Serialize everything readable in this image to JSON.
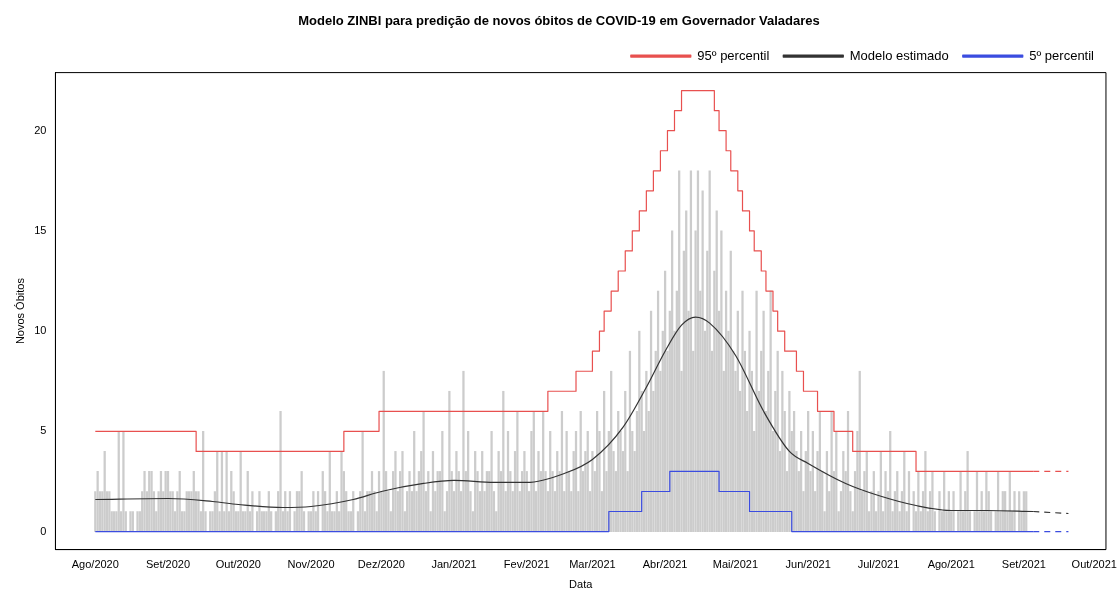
{
  "chart_data": {
    "type": "bar",
    "title": "Modelo ZINBI para predição de novos óbitos de COVID-19 em Governador Valadares",
    "xlabel": "Data",
    "ylabel": "Novos Óbitos",
    "xlim": [
      "2020-07-15",
      "2021-10-06"
    ],
    "ylim": [
      -0.9,
      22.9
    ],
    "xticks": [
      {
        "value": "2020-08-01",
        "label": "Ago/2020"
      },
      {
        "value": "2020-09-01",
        "label": "Set/2020"
      },
      {
        "value": "2020-10-01",
        "label": "Out/2020"
      },
      {
        "value": "2020-11-01",
        "label": "Nov/2020"
      },
      {
        "value": "2020-12-01",
        "label": "Dez/2020"
      },
      {
        "value": "2021-01-01",
        "label": "Jan/2021"
      },
      {
        "value": "2021-02-01",
        "label": "Fev/2021"
      },
      {
        "value": "2021-03-01",
        "label": "Mar/2021"
      },
      {
        "value": "2021-04-01",
        "label": "Abr/2021"
      },
      {
        "value": "2021-05-01",
        "label": "Mai/2021"
      },
      {
        "value": "2021-06-01",
        "label": "Jun/2021"
      },
      {
        "value": "2021-07-01",
        "label": "Jul/2021"
      },
      {
        "value": "2021-08-01",
        "label": "Ago/2021"
      },
      {
        "value": "2021-09-01",
        "label": "Set/2021"
      },
      {
        "value": "2021-10-01",
        "label": "Out/2021"
      }
    ],
    "yticks": [
      0,
      5,
      10,
      15,
      20
    ],
    "grid": false,
    "legend": "top right",
    "marker": "none",
    "series": [
      {
        "color": "#cccccc",
        "x": [
          "2020-08-01",
          "2020-08-02",
          "2020-08-03",
          "2020-08-04",
          "2020-08-05",
          "2020-08-06",
          "2020-08-07",
          "2020-08-08",
          "2020-08-09",
          "2020-08-10",
          "2020-08-11",
          "2020-08-12",
          "2020-08-13",
          "2020-08-14",
          "2020-08-15",
          "2020-08-16",
          "2020-08-17",
          "2020-08-18",
          "2020-08-19",
          "2020-08-20",
          "2020-08-21",
          "2020-08-22",
          "2020-08-23",
          "2020-08-24",
          "2020-08-25",
          "2020-08-26",
          "2020-08-27",
          "2020-08-28",
          "2020-08-29",
          "2020-08-30",
          "2020-08-31",
          "2020-09-01",
          "2020-09-02",
          "2020-09-03",
          "2020-09-04",
          "2020-09-05",
          "2020-09-06",
          "2020-09-07",
          "2020-09-08",
          "2020-09-09",
          "2020-09-10",
          "2020-09-11",
          "2020-09-12",
          "2020-09-13",
          "2020-09-14",
          "2020-09-15",
          "2020-09-16",
          "2020-09-17",
          "2020-09-18",
          "2020-09-19",
          "2020-09-20",
          "2020-09-21",
          "2020-09-22",
          "2020-09-23",
          "2020-09-24",
          "2020-09-25",
          "2020-09-26",
          "2020-09-27",
          "2020-09-28",
          "2020-09-29",
          "2020-09-30",
          "2020-10-01",
          "2020-10-02",
          "2020-10-03",
          "2020-10-04",
          "2020-10-05",
          "2020-10-06",
          "2020-10-07",
          "2020-10-08",
          "2020-10-09",
          "2020-10-10",
          "2020-10-11",
          "2020-10-12",
          "2020-10-13",
          "2020-10-14",
          "2020-10-15",
          "2020-10-16",
          "2020-10-17",
          "2020-10-18",
          "2020-10-19",
          "2020-10-20",
          "2020-10-21",
          "2020-10-22",
          "2020-10-23",
          "2020-10-24",
          "2020-10-25",
          "2020-10-26",
          "2020-10-27",
          "2020-10-28",
          "2020-10-29",
          "2020-10-30",
          "2020-10-31",
          "2020-11-01",
          "2020-11-02",
          "2020-11-03",
          "2020-11-04",
          "2020-11-05",
          "2020-11-06",
          "2020-11-07",
          "2020-11-08",
          "2020-11-09",
          "2020-11-10",
          "2020-11-11",
          "2020-11-12",
          "2020-11-13",
          "2020-11-14",
          "2020-11-15",
          "2020-11-16",
          "2020-11-17",
          "2020-11-18",
          "2020-11-19",
          "2020-11-20",
          "2020-11-21",
          "2020-11-22",
          "2020-11-23",
          "2020-11-24",
          "2020-11-25",
          "2020-11-26",
          "2020-11-27",
          "2020-11-28",
          "2020-11-29",
          "2020-11-30",
          "2020-12-01",
          "2020-12-02",
          "2020-12-03",
          "2020-12-04",
          "2020-12-05",
          "2020-12-06",
          "2020-12-07",
          "2020-12-08",
          "2020-12-09",
          "2020-12-10",
          "2020-12-11",
          "2020-12-12",
          "2020-12-13",
          "2020-12-14",
          "2020-12-15",
          "2020-12-16",
          "2020-12-17",
          "2020-12-18",
          "2020-12-19",
          "2020-12-20",
          "2020-12-21",
          "2020-12-22",
          "2020-12-23",
          "2020-12-24",
          "2020-12-25",
          "2020-12-26",
          "2020-12-27",
          "2020-12-28",
          "2020-12-29",
          "2020-12-30",
          "2020-12-31",
          "2021-01-01",
          "2021-01-02",
          "2021-01-03",
          "2021-01-04",
          "2021-01-05",
          "2021-01-06",
          "2021-01-07",
          "2021-01-08",
          "2021-01-09",
          "2021-01-10",
          "2021-01-11",
          "2021-01-12",
          "2021-01-13",
          "2021-01-14",
          "2021-01-15",
          "2021-01-16",
          "2021-01-17",
          "2021-01-18",
          "2021-01-19",
          "2021-01-20",
          "2021-01-21",
          "2021-01-22",
          "2021-01-23",
          "2021-01-24",
          "2021-01-25",
          "2021-01-26",
          "2021-01-27",
          "2021-01-28",
          "2021-01-29",
          "2021-01-30",
          "2021-01-31",
          "2021-02-01",
          "2021-02-02",
          "2021-02-03",
          "2021-02-04",
          "2021-02-05",
          "2021-02-06",
          "2021-02-07",
          "2021-02-08",
          "2021-02-09",
          "2021-02-10",
          "2021-02-11",
          "2021-02-12",
          "2021-02-13",
          "2021-02-14",
          "2021-02-15",
          "2021-02-16",
          "2021-02-17",
          "2021-02-18",
          "2021-02-19",
          "2021-02-20",
          "2021-02-21",
          "2021-02-22",
          "2021-02-23",
          "2021-02-24",
          "2021-02-25",
          "2021-02-26",
          "2021-02-27",
          "2021-02-28",
          "2021-03-01",
          "2021-03-02",
          "2021-03-03",
          "2021-03-04",
          "2021-03-05",
          "2021-03-06",
          "2021-03-07",
          "2021-03-08",
          "2021-03-09",
          "2021-03-10",
          "2021-03-11",
          "2021-03-12",
          "2021-03-13",
          "2021-03-14",
          "2021-03-15",
          "2021-03-16",
          "2021-03-17",
          "2021-03-18",
          "2021-03-19",
          "2021-03-20",
          "2021-03-21",
          "2021-03-22",
          "2021-03-23",
          "2021-03-24",
          "2021-03-25",
          "2021-03-26",
          "2021-03-27",
          "2021-03-28",
          "2021-03-29",
          "2021-03-30",
          "2021-03-31",
          "2021-04-01",
          "2021-04-02",
          "2021-04-03",
          "2021-04-04",
          "2021-04-05",
          "2021-04-06",
          "2021-04-07",
          "2021-04-08",
          "2021-04-09",
          "2021-04-10",
          "2021-04-11",
          "2021-04-12",
          "2021-04-13",
          "2021-04-14",
          "2021-04-15",
          "2021-04-16",
          "2021-04-17",
          "2021-04-18",
          "2021-04-19",
          "2021-04-20",
          "2021-04-21",
          "2021-04-22",
          "2021-04-23",
          "2021-04-24",
          "2021-04-25",
          "2021-04-26",
          "2021-04-27",
          "2021-04-28",
          "2021-04-29",
          "2021-04-30",
          "2021-05-01",
          "2021-05-02",
          "2021-05-03",
          "2021-05-04",
          "2021-05-05",
          "2021-05-06",
          "2021-05-07",
          "2021-05-08",
          "2021-05-09",
          "2021-05-10",
          "2021-05-11",
          "2021-05-12",
          "2021-05-13",
          "2021-05-14",
          "2021-05-15",
          "2021-05-16",
          "2021-05-17",
          "2021-05-18",
          "2021-05-19",
          "2021-05-20",
          "2021-05-21",
          "2021-05-22",
          "2021-05-23",
          "2021-05-24",
          "2021-05-25",
          "2021-05-26",
          "2021-05-27",
          "2021-05-28",
          "2021-05-29",
          "2021-05-30",
          "2021-05-31",
          "2021-06-01",
          "2021-06-02",
          "2021-06-03",
          "2021-06-04",
          "2021-06-05",
          "2021-06-06",
          "2021-06-07",
          "2021-06-08",
          "2021-06-09",
          "2021-06-10",
          "2021-06-11",
          "2021-06-12",
          "2021-06-13",
          "2021-06-14",
          "2021-06-15",
          "2021-06-16",
          "2021-06-17",
          "2021-06-18",
          "2021-06-19",
          "2021-06-20",
          "2021-06-21",
          "2021-06-22",
          "2021-06-23",
          "2021-06-24",
          "2021-06-25",
          "2021-06-26",
          "2021-06-27",
          "2021-06-28",
          "2021-06-29",
          "2021-06-30",
          "2021-07-01",
          "2021-07-02",
          "2021-07-03",
          "2021-07-04",
          "2021-07-05",
          "2021-07-06",
          "2021-07-07",
          "2021-07-08",
          "2021-07-09",
          "2021-07-10",
          "2021-07-11",
          "2021-07-12",
          "2021-07-13",
          "2021-07-14",
          "2021-07-15",
          "2021-07-16",
          "2021-07-17",
          "2021-07-18",
          "2021-07-19",
          "2021-07-20",
          "2021-07-21",
          "2021-07-22",
          "2021-07-23",
          "2021-07-24",
          "2021-07-25",
          "2021-07-26",
          "2021-07-27",
          "2021-07-28",
          "2021-07-29",
          "2021-07-30",
          "2021-07-31",
          "2021-08-01",
          "2021-08-02",
          "2021-08-03",
          "2021-08-04",
          "2021-08-05",
          "2021-08-06",
          "2021-08-07",
          "2021-08-08",
          "2021-08-09",
          "2021-08-10",
          "2021-08-11",
          "2021-08-12",
          "2021-08-13",
          "2021-08-14",
          "2021-08-15",
          "2021-08-16",
          "2021-08-17",
          "2021-08-18",
          "2021-08-19",
          "2021-08-20",
          "2021-08-21",
          "2021-08-22",
          "2021-08-23",
          "2021-08-24",
          "2021-08-25",
          "2021-08-26",
          "2021-08-27",
          "2021-08-28",
          "2021-08-29",
          "2021-08-30",
          "2021-08-31",
          "2021-09-01",
          "2021-09-02"
        ],
        "values": [
          2,
          3,
          2,
          2,
          4,
          2,
          2,
          1,
          1,
          1,
          5,
          1,
          5,
          1,
          0,
          1,
          1,
          0,
          1,
          1,
          2,
          3,
          2,
          3,
          3,
          2,
          1,
          2,
          3,
          2,
          3,
          3,
          2,
          2,
          1,
          2,
          3,
          1,
          1,
          2,
          2,
          2,
          3,
          2,
          2,
          1,
          5,
          1,
          0,
          1,
          1,
          2,
          4,
          1,
          4,
          1,
          4,
          1,
          3,
          2,
          1,
          1,
          4,
          1,
          1,
          3,
          1,
          2,
          0,
          1,
          2,
          1,
          1,
          1,
          2,
          1,
          0,
          1,
          2,
          6,
          1,
          2,
          1,
          2,
          0,
          1,
          2,
          2,
          3,
          1,
          0,
          1,
          1,
          2,
          1,
          2,
          0,
          3,
          2,
          1,
          4,
          1,
          1,
          2,
          1,
          4,
          3,
          2,
          1,
          1,
          2,
          0,
          1,
          2,
          5,
          1,
          2,
          2,
          3,
          2,
          1,
          3,
          2,
          8,
          3,
          2,
          1,
          3,
          4,
          2,
          3,
          4,
          1,
          2,
          3,
          2,
          5,
          2,
          3,
          4,
          6,
          2,
          3,
          1,
          4,
          2,
          3,
          3,
          5,
          1,
          2,
          7,
          3,
          2,
          4,
          3,
          2,
          8,
          3,
          5,
          2,
          1,
          4,
          3,
          2,
          4,
          2,
          3,
          3,
          5,
          2,
          1,
          4,
          3,
          7,
          2,
          5,
          3,
          2,
          4,
          6,
          2,
          3,
          4,
          3,
          2,
          5,
          6,
          2,
          4,
          3,
          6,
          3,
          2,
          5,
          3,
          2,
          4,
          3,
          6,
          2,
          5,
          3,
          2,
          4,
          5,
          2,
          6,
          3,
          4,
          5,
          2,
          4,
          3,
          6,
          5,
          2,
          7,
          3,
          5,
          8,
          4,
          3,
          6,
          5,
          4,
          7,
          3,
          9,
          5,
          4,
          6,
          10,
          7,
          5,
          8,
          6,
          11,
          7,
          9,
          12,
          8,
          10,
          13,
          9,
          11,
          15,
          10,
          12,
          18,
          8,
          14,
          16,
          11,
          18,
          9,
          15,
          18,
          12,
          17,
          10,
          14,
          18,
          9,
          13,
          16,
          11,
          15,
          8,
          12,
          10,
          14,
          9,
          8,
          11,
          7,
          12,
          9,
          6,
          10,
          8,
          5,
          12,
          7,
          9,
          11,
          6,
          8,
          12,
          5,
          7,
          9,
          4,
          8,
          6,
          3,
          7,
          5,
          6,
          4,
          3,
          5,
          2,
          4,
          6,
          3,
          5,
          2,
          4,
          6,
          3,
          1,
          4,
          2,
          6,
          3,
          5,
          1,
          2,
          4,
          3,
          6,
          2,
          1,
          3,
          5,
          8,
          2,
          3,
          4,
          1,
          2,
          3,
          1,
          2,
          4,
          1,
          3,
          2,
          5,
          1,
          2,
          3,
          1,
          2,
          4,
          1,
          3,
          0,
          2,
          1,
          3,
          1,
          2,
          4,
          1,
          2,
          3,
          1,
          0,
          2,
          1,
          3,
          1,
          2,
          1,
          2,
          0,
          1,
          3,
          1,
          2,
          4,
          1,
          0,
          1,
          3,
          1,
          2,
          1,
          3,
          2,
          1,
          0,
          1,
          3,
          1,
          2,
          2,
          1,
          3,
          1,
          2,
          0,
          2,
          1,
          2,
          2
        ]
      },
      {
        "type": "step",
        "name": "95º percentil",
        "color": "#e8504f",
        "line_style": "solid",
        "x": [
          "2020-08-01",
          "2020-09-13",
          "2020-11-15",
          "2020-11-30",
          "2021-02-10",
          "2021-02-22",
          "2021-03-01",
          "2021-03-04",
          "2021-03-06",
          "2021-03-09",
          "2021-03-12",
          "2021-03-15",
          "2021-03-18",
          "2021-03-21",
          "2021-03-24",
          "2021-03-27",
          "2021-03-30",
          "2021-04-02",
          "2021-04-05",
          "2021-04-08",
          "2021-04-22",
          "2021-04-24",
          "2021-04-27",
          "2021-04-29",
          "2021-05-02",
          "2021-05-04",
          "2021-05-07",
          "2021-05-09",
          "2021-05-12",
          "2021-05-14",
          "2021-05-17",
          "2021-05-19",
          "2021-05-22",
          "2021-05-27",
          "2021-05-30",
          "2021-06-05",
          "2021-06-12",
          "2021-06-20",
          "2021-07-17",
          "2021-09-05"
        ],
        "values": [
          5,
          4,
          5,
          6,
          7,
          8,
          9,
          10,
          11,
          12,
          13,
          14,
          15,
          16,
          17,
          18,
          19,
          20,
          21,
          22,
          21,
          20,
          19,
          18,
          17,
          16,
          15,
          14,
          13,
          12,
          11,
          10,
          9,
          8,
          7,
          6,
          5,
          4,
          3,
          3
        ]
      },
      {
        "type": "line",
        "name": "Modelo estimado",
        "color": "#333333",
        "line_style": "solid",
        "x": [
          "2020-08-01",
          "2020-09-01",
          "2020-09-20",
          "2020-10-01",
          "2020-10-20",
          "2020-11-01",
          "2020-11-19",
          "2020-12-01",
          "2020-12-19",
          "2021-01-01",
          "2021-01-18",
          "2021-02-01",
          "2021-02-17",
          "2021-03-01",
          "2021-03-14",
          "2021-03-24",
          "2021-04-01",
          "2021-04-08",
          "2021-04-14",
          "2021-04-20",
          "2021-05-01",
          "2021-05-13",
          "2021-05-24",
          "2021-06-01",
          "2021-06-17",
          "2021-07-01",
          "2021-07-17",
          "2021-08-01",
          "2021-08-16",
          "2021-09-05"
        ],
        "values": [
          1.6,
          1.65,
          1.5,
          1.35,
          1.2,
          1.25,
          1.6,
          2.0,
          2.4,
          2.55,
          2.45,
          2.45,
          2.9,
          3.6,
          5.2,
          7.2,
          9.0,
          10.3,
          10.7,
          10.4,
          8.8,
          6.0,
          4.0,
          3.4,
          2.4,
          1.8,
          1.3,
          1.05,
          1.05,
          1.0
        ]
      },
      {
        "type": "step",
        "name": "5º percentil",
        "color": "#3b4ce0",
        "line_style": "solid",
        "x": [
          "2020-08-01",
          "2021-03-08",
          "2021-03-22",
          "2021-04-03",
          "2021-04-24",
          "2021-05-07",
          "2021-05-25",
          "2021-09-05"
        ],
        "values": [
          0,
          1,
          2,
          3,
          2,
          1,
          0,
          0
        ]
      },
      {
        "type": "line",
        "color": "#e8504f",
        "line_style": "dashed",
        "x": [
          "2021-09-05",
          "2021-09-20"
        ],
        "values": [
          3,
          3
        ]
      },
      {
        "type": "line",
        "color": "#333333",
        "line_style": "dashed",
        "x": [
          "2021-09-05",
          "2021-09-20"
        ],
        "values": [
          1.0,
          0.9
        ]
      },
      {
        "type": "line",
        "color": "#3b4ce0",
        "line_style": "dashed",
        "x": [
          "2021-09-05",
          "2021-09-20"
        ],
        "values": [
          0,
          0
        ]
      }
    ]
  }
}
